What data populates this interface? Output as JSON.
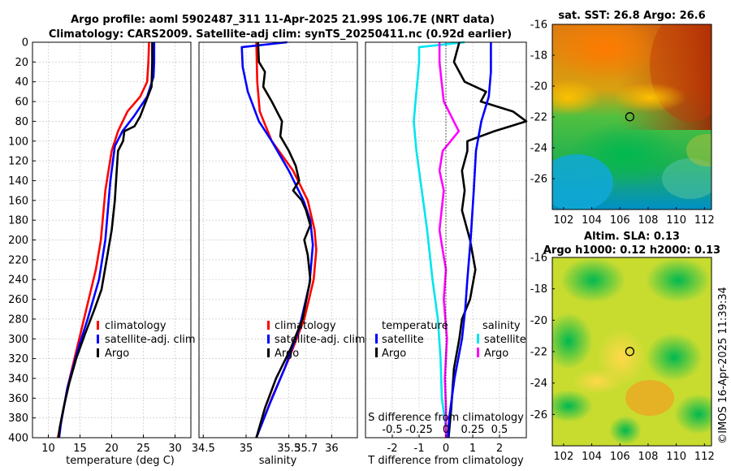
{
  "title_line1": "Argo profile: aoml 5902487_311 11-Apr-2025 21.99S 106.7E (NRT data)",
  "title_line2": "Climatology: CARS2009. Satellite-adj clim: synTS_20250411.nc (0.92d earlier)",
  "colors": {
    "climatology": "#ff0000",
    "satellite": "#0000ff",
    "argo": "#000000",
    "t_sat": "#00e5ee",
    "s_argo": "#ff00ff"
  },
  "depth_ticks": [
    0,
    20,
    40,
    60,
    80,
    100,
    120,
    140,
    160,
    180,
    200,
    220,
    240,
    260,
    280,
    300,
    320,
    340,
    360,
    380,
    400
  ],
  "chart_data": [
    {
      "type": "line",
      "id": "temperature-profile",
      "xlabel": "temperature (deg C)",
      "ylabel": "depth",
      "xlim": [
        7.5,
        32.5
      ],
      "ylim": [
        400,
        0
      ],
      "x_ticks": [
        10,
        15,
        20,
        25,
        30
      ],
      "legend": [
        "climatology",
        "satellite-adj. clim",
        "Argo"
      ],
      "series": [
        {
          "name": "climatology",
          "color": "#ff0000",
          "points": [
            [
              25.9,
              0
            ],
            [
              25.8,
              20
            ],
            [
              25.6,
              40
            ],
            [
              24.5,
              55
            ],
            [
              22.5,
              70
            ],
            [
              21,
              90
            ],
            [
              20,
              110
            ],
            [
              19,
              150
            ],
            [
              18.3,
              200
            ],
            [
              17.5,
              230
            ],
            [
              16,
              270
            ],
            [
              14.5,
              310
            ],
            [
              13,
              350
            ],
            [
              12,
              385
            ],
            [
              11.5,
              400
            ]
          ]
        },
        {
          "name": "satellite-adj. clim",
          "color": "#0000ff",
          "points": [
            [
              26.7,
              0
            ],
            [
              26.7,
              20
            ],
            [
              26.6,
              35
            ],
            [
              25.6,
              55
            ],
            [
              23.5,
              75
            ],
            [
              21.7,
              90
            ],
            [
              20.5,
              105
            ],
            [
              19.8,
              140
            ],
            [
              19,
              200
            ],
            [
              18,
              240
            ],
            [
              16.2,
              280
            ],
            [
              14.7,
              310
            ],
            [
              13,
              350
            ],
            [
              12,
              385
            ],
            [
              11.7,
              400
            ]
          ]
        },
        {
          "name": "Argo",
          "color": "#000000",
          "points": [
            [
              26.4,
              0
            ],
            [
              26.4,
              20
            ],
            [
              26.3,
              45
            ],
            [
              25.4,
              60
            ],
            [
              24.5,
              75
            ],
            [
              23.6,
              85
            ],
            [
              22,
              90
            ],
            [
              21.8,
              100
            ],
            [
              21,
              110
            ],
            [
              20.8,
              130
            ],
            [
              20.5,
              160
            ],
            [
              20,
              190
            ],
            [
              19.2,
              220
            ],
            [
              18.4,
              250
            ],
            [
              17.3,
              270
            ],
            [
              15.8,
              295
            ],
            [
              14.4,
              320
            ],
            [
              13.3,
              345
            ],
            [
              12.4,
              370
            ],
            [
              11.8,
              390
            ],
            [
              11.6,
              400
            ]
          ]
        }
      ]
    },
    {
      "type": "line",
      "id": "salinity-profile",
      "xlabel": "salinity",
      "ylabel": "depth",
      "xlim": [
        34.45,
        36.3
      ],
      "ylim": [
        400,
        0
      ],
      "x_ticks": [
        34.5,
        35,
        35.5,
        35.7,
        36
      ],
      "x_tick_labels": [
        "34.5",
        "35",
        "35.5",
        "35.7",
        "36"
      ],
      "legend": [
        "climatology",
        "satellite-adj. clim",
        "Argo"
      ],
      "series": [
        {
          "name": "climatology",
          "color": "#ff0000",
          "points": [
            [
              35.12,
              0
            ],
            [
              35.13,
              40
            ],
            [
              35.16,
              70
            ],
            [
              35.3,
              100
            ],
            [
              35.55,
              130
            ],
            [
              35.72,
              160
            ],
            [
              35.8,
              190
            ],
            [
              35.82,
              210
            ],
            [
              35.79,
              240
            ],
            [
              35.68,
              280
            ],
            [
              35.5,
              320
            ],
            [
              35.3,
              360
            ],
            [
              35.12,
              400
            ]
          ]
        },
        {
          "name": "satellite-adj. clim",
          "color": "#0000ff",
          "points": [
            [
              35.48,
              0
            ],
            [
              34.95,
              5
            ],
            [
              34.96,
              25
            ],
            [
              35.02,
              50
            ],
            [
              35.15,
              80
            ],
            [
              35.3,
              100
            ],
            [
              35.5,
              130
            ],
            [
              35.67,
              160
            ],
            [
              35.75,
              180
            ],
            [
              35.78,
              205
            ],
            [
              35.74,
              245
            ],
            [
              35.62,
              290
            ],
            [
              35.45,
              330
            ],
            [
              35.28,
              365
            ],
            [
              35.12,
              400
            ]
          ]
        },
        {
          "name": "Argo",
          "color": "#000000",
          "points": [
            [
              35.14,
              0
            ],
            [
              35.15,
              20
            ],
            [
              35.22,
              30
            ],
            [
              35.2,
              45
            ],
            [
              35.3,
              60
            ],
            [
              35.42,
              80
            ],
            [
              35.4,
              95
            ],
            [
              35.5,
              110
            ],
            [
              35.58,
              125
            ],
            [
              35.62,
              140
            ],
            [
              35.55,
              150
            ],
            [
              35.65,
              160
            ],
            [
              35.7,
              170
            ],
            [
              35.75,
              185
            ],
            [
              35.68,
              200
            ],
            [
              35.72,
              215
            ],
            [
              35.75,
              240
            ],
            [
              35.66,
              280
            ],
            [
              35.52,
              310
            ],
            [
              35.35,
              340
            ],
            [
              35.22,
              370
            ],
            [
              35.12,
              400
            ]
          ]
        }
      ]
    },
    {
      "type": "line",
      "id": "difference-profile",
      "xlabel": "T difference from climatology",
      "xlabel_top": "S difference from climatology",
      "ylabel": "depth",
      "xlim": [
        -3,
        3
      ],
      "ylim": [
        400,
        0
      ],
      "x_ticks": [
        -2,
        -1,
        0,
        1,
        2
      ],
      "s_ticks": [
        -0.5,
        -0.25,
        0,
        0.25,
        0.5
      ],
      "s_tick_labels": [
        "-0.5",
        "-0.25",
        "0",
        "0.25",
        "0.5"
      ],
      "legend_left_title": "temperature",
      "legend_right_title": "salinity",
      "legend_left": [
        "satellite",
        "Argo"
      ],
      "legend_right": [
        "satellite",
        "Argo"
      ],
      "series": [
        {
          "name": "T satellite",
          "color": "#00e5ee",
          "points": [
            [
              0.7,
              0
            ],
            [
              -1,
              5
            ],
            [
              -1,
              20
            ],
            [
              -1.1,
              50
            ],
            [
              -1.2,
              80
            ],
            [
              -1.1,
              110
            ],
            [
              -0.9,
              150
            ],
            [
              -0.7,
              190
            ],
            [
              -0.5,
              240
            ],
            [
              -0.3,
              280
            ],
            [
              -0.2,
              320
            ],
            [
              -0.15,
              360
            ],
            [
              0.05,
              400
            ]
          ]
        },
        {
          "name": "T Argo",
          "color": "#000000",
          "points": [
            [
              0.5,
              0
            ],
            [
              0.3,
              20
            ],
            [
              0.7,
              40
            ],
            [
              1.5,
              50
            ],
            [
              1.3,
              60
            ],
            [
              2.5,
              70
            ],
            [
              3,
              80
            ],
            [
              1.8,
              90
            ],
            [
              0.8,
              100
            ],
            [
              0.8,
              110
            ],
            [
              0.6,
              130
            ],
            [
              0.7,
              150
            ],
            [
              0.6,
              170
            ],
            [
              0.9,
              200
            ],
            [
              1.1,
              230
            ],
            [
              0.9,
              260
            ],
            [
              0.6,
              280
            ],
            [
              0.5,
              300
            ],
            [
              0.3,
              330
            ],
            [
              0.2,
              370
            ],
            [
              0.1,
              400
            ]
          ]
        },
        {
          "name": "S satellite",
          "color": "#0000ff",
          "points": [
            [
              0.42,
              0
            ],
            [
              0.42,
              30
            ],
            [
              0.4,
              55
            ],
            [
              0.33,
              80
            ],
            [
              0.28,
              110
            ],
            [
              0.26,
              150
            ],
            [
              0.23,
              200
            ],
            [
              0.2,
              240
            ],
            [
              0.18,
              270
            ],
            [
              0.15,
              300
            ],
            [
              0.08,
              340
            ],
            [
              0.03,
              380
            ],
            [
              0.02,
              400
            ]
          ]
        },
        {
          "name": "S Argo",
          "color": "#ff00ff",
          "points": [
            [
              -0.06,
              0
            ],
            [
              -0.06,
              20
            ],
            [
              -0.04,
              40
            ],
            [
              -0.02,
              60
            ],
            [
              0.12,
              90
            ],
            [
              -0.03,
              110
            ],
            [
              -0.06,
              130
            ],
            [
              -0.02,
              150
            ],
            [
              -0.04,
              170
            ],
            [
              -0.06,
              190
            ],
            [
              -0.03,
              210
            ],
            [
              0,
              230
            ],
            [
              -0.02,
              260
            ],
            [
              0.01,
              300
            ],
            [
              -0.01,
              340
            ],
            [
              0,
              370
            ],
            [
              0,
              400
            ]
          ]
        }
      ]
    },
    {
      "type": "heatmap",
      "id": "sst-map",
      "title": "sat. SST: 26.8 Argo: 26.6",
      "xlim": [
        101.2,
        112.5
      ],
      "ylim": [
        -28,
        -16
      ],
      "x_ticks": [
        102,
        104,
        106,
        108,
        110,
        112
      ],
      "y_ticks": [
        -16,
        -18,
        -20,
        -22,
        -24,
        -26
      ],
      "marker": {
        "lon": 106.7,
        "lat": -21.99
      }
    },
    {
      "type": "heatmap",
      "id": "sla-map",
      "title": "Altim. SLA: 0.13",
      "subtitle": "Argo h1000: 0.12 h2000: 0.13",
      "xlim": [
        101.2,
        112.5
      ],
      "ylim": [
        -28,
        -16
      ],
      "x_ticks": [
        102,
        104,
        106,
        108,
        110,
        112
      ],
      "y_ticks": [
        -16,
        -18,
        -20,
        -22,
        -24,
        -26
      ],
      "marker": {
        "lon": 106.7,
        "lat": -21.99
      }
    }
  ],
  "credit": "©IMOS 16-Apr-2025 11:39:34"
}
